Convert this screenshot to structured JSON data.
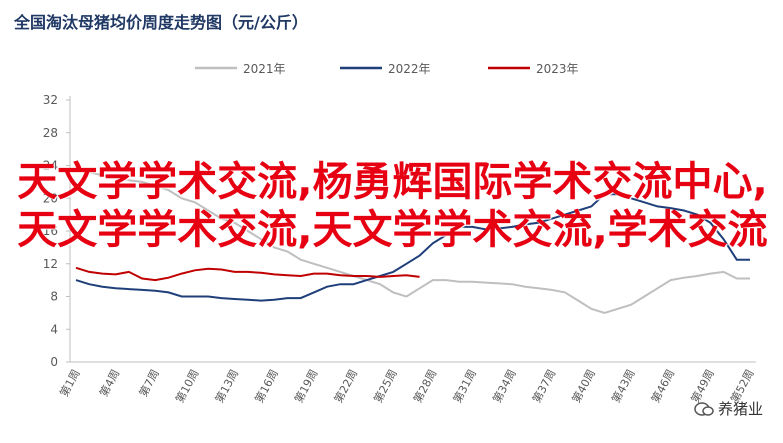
{
  "chart_data": {
    "type": "line",
    "title": "全国淘汰母猪均价周度走势图（元/公斤）",
    "categories": [
      "第1周",
      null,
      null,
      "第4周",
      null,
      null,
      "第7周",
      null,
      null,
      "第10周",
      null,
      null,
      "第13周",
      null,
      null,
      "第16周",
      null,
      null,
      "第19周",
      null,
      null,
      "第22周",
      null,
      null,
      "第25周",
      null,
      null,
      "第28周",
      null,
      null,
      "第31周",
      null,
      null,
      "第34周",
      null,
      null,
      "第37周",
      null,
      null,
      "第40周",
      null,
      null,
      "第43周",
      null,
      null,
      "第46周",
      null,
      null,
      "第49周",
      null,
      null,
      "第52周"
    ],
    "series": [
      {
        "name": "2021年",
        "color": "#bfbfbf",
        "values": [
          23.5,
          23.2,
          22.8,
          22.5,
          22.2,
          22,
          21.5,
          21,
          20,
          19.5,
          18.5,
          17.5,
          17,
          16,
          15,
          14,
          13.5,
          12.5,
          12,
          11.5,
          11,
          10.5,
          10,
          9.5,
          8.5,
          8,
          9,
          10,
          10,
          9.8,
          9.8,
          9.7,
          9.6,
          9.5,
          9.2,
          9,
          8.8,
          8.5,
          7.5,
          6.5,
          6,
          6.5,
          7,
          8,
          9,
          10,
          10.3,
          10.5,
          10.8,
          11,
          10.2,
          10.2
        ]
      },
      {
        "name": "2022年",
        "color": "#1f3f7a",
        "values": [
          10,
          9.5,
          9.2,
          9,
          8.9,
          8.8,
          8.7,
          8.5,
          8,
          8,
          8,
          7.8,
          7.7,
          7.6,
          7.5,
          7.6,
          7.8,
          7.8,
          8.5,
          9.2,
          9.5,
          9.5,
          10,
          10.5,
          11,
          12,
          13,
          14.5,
          15.5,
          16.5,
          16.5,
          16.2,
          16.3,
          16.5,
          16.8,
          17,
          17.5,
          18,
          18.5,
          19,
          20.5,
          20.5,
          20,
          19.5,
          19,
          18.8,
          18.5,
          18,
          17,
          15,
          12.5,
          12.5
        ]
      },
      {
        "name": "2023年",
        "color": "#c00000",
        "values": [
          11.5,
          11,
          10.8,
          10.7,
          11,
          10.2,
          10,
          10.3,
          10.8,
          11.2,
          11.4,
          11.3,
          11,
          11,
          10.9,
          10.7,
          10.6,
          10.5,
          10.8,
          10.8,
          10.6,
          10.5,
          10.5,
          10.4,
          10.5,
          10.6,
          10.4,
          null,
          null,
          null,
          null,
          null,
          null,
          null,
          null,
          null,
          null,
          null,
          null,
          null,
          null,
          null,
          null,
          null,
          null,
          null,
          null,
          null,
          null,
          null,
          null,
          null
        ]
      }
    ],
    "ylim": [
      0,
      32
    ],
    "yticks": [
      0,
      4,
      8,
      12,
      16,
      20,
      24,
      28,
      32
    ],
    "grid": false
  },
  "overlay": {
    "text": "天文学学术交流,杨勇辉国际学术交流中心,天文学学术交流,天文学学术交流,学术交流"
  },
  "watermark": "养猪业"
}
